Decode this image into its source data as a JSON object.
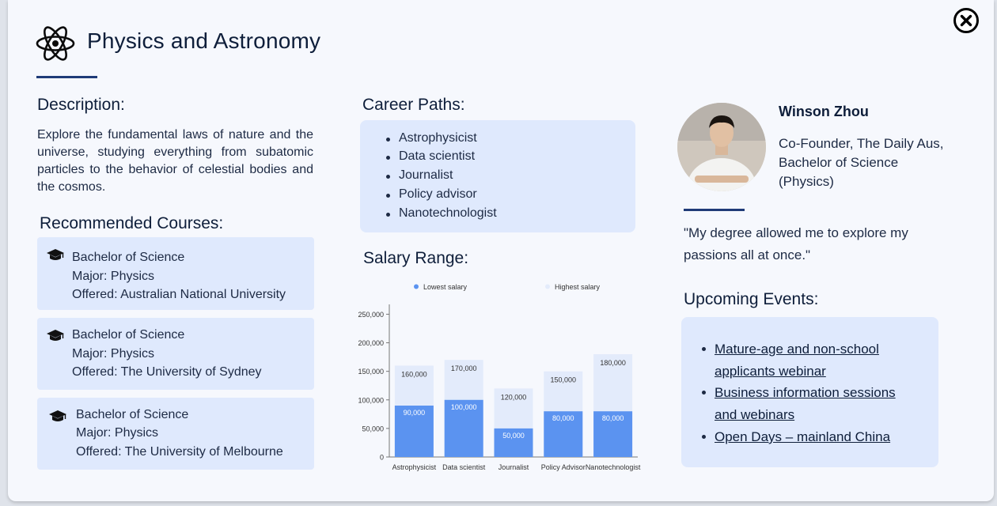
{
  "header": {
    "title": "Physics and Astronomy",
    "icon": "atom-icon",
    "close_icon": "close-circle-icon"
  },
  "description": {
    "heading": "Description:",
    "text": "Explore the fundamental laws of nature and the universe, studying everything from subatomic particles to the behavior of celestial bodies and the cosmos."
  },
  "courses": {
    "heading": "Recommended Courses:",
    "items": [
      {
        "degree": "Bachelor of Science",
        "major": "Major: Physics",
        "offered": "Offered: Australian National University"
      },
      {
        "degree": "Bachelor of Science",
        "major": "Major: Physics",
        "offered": "Offered: The University of Sydney"
      },
      {
        "degree": "Bachelor of Science",
        "major": "Major: Physics",
        "offered": "Offered: The University of Melbourne"
      }
    ]
  },
  "careers": {
    "heading": "Career Paths:",
    "items": [
      "Astrophysicist",
      "Data scientist",
      "Journalist",
      "Policy advisor",
      "Nanotechnologist"
    ]
  },
  "salary": {
    "heading": "Salary Range:"
  },
  "chart_data": {
    "type": "bar",
    "stacked": true,
    "categories": [
      "Astrophysicist",
      "Data scientist",
      "Journalist",
      "Policy Advisor",
      "Nanotechnologist"
    ],
    "series": [
      {
        "name": "Lowest salary",
        "values": [
          90000,
          100000,
          50000,
          80000,
          80000
        ],
        "labels": [
          "90,000",
          "100,000",
          "50,000",
          "80,000",
          "80,000"
        ],
        "color": "#5b93f0"
      },
      {
        "name": "Highest salary",
        "values": [
          160000,
          170000,
          120000,
          150000,
          180000
        ],
        "labels": [
          "160,000",
          "170,000",
          "120,000",
          "150,000",
          "180,000"
        ],
        "color": "#e3ebfb"
      }
    ],
    "yticks": [
      0,
      50000,
      100000,
      150000,
      200000,
      250000
    ],
    "ytick_labels": [
      "0",
      "50,000",
      "100,000",
      "150,000",
      "200,000",
      "250,000"
    ],
    "ylim": [
      0,
      270000
    ],
    "legend": "top",
    "grid": false
  },
  "testimonial": {
    "name": "Winson Zhou",
    "role": "Co-Founder, The Daily Aus, Bachelor of Science (Physics)",
    "quote": "\"My degree allowed me to explore my passions all at once.\""
  },
  "events": {
    "heading": "Upcoming Events:",
    "items": [
      {
        "line1": "Mature-age and non-school ",
        "line2": "applicants webinar"
      },
      {
        "line1": "Business information sessions ",
        "line2": "and webinars"
      },
      {
        "line1": "Open Days – mainland China",
        "line2": ""
      }
    ]
  }
}
